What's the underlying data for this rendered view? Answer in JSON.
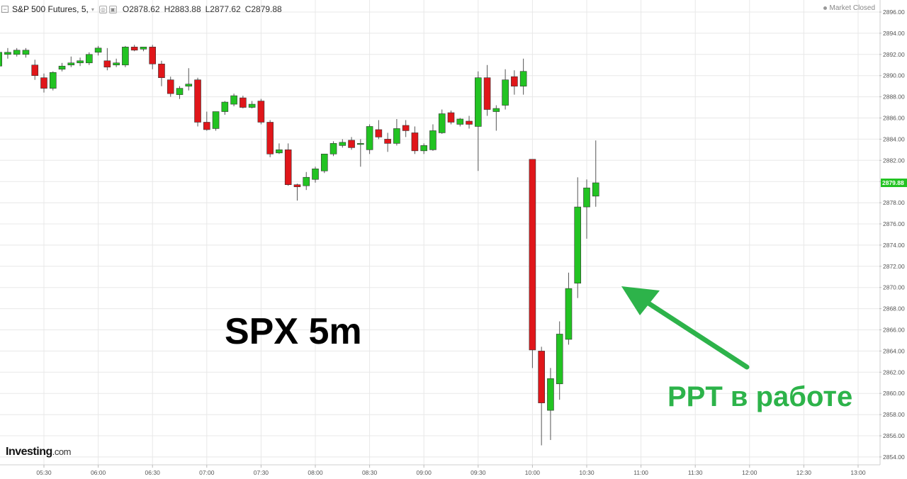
{
  "header": {
    "collapse_glyph": "−",
    "symbol": "S&P 500 Futures, 5,",
    "caret_glyph": "▾",
    "eye_glyph": "◎",
    "settings_glyph": "▣",
    "open": "O2878.62",
    "high": "H2883.88",
    "low": "L2877.62",
    "close": "C2879.88"
  },
  "status": {
    "text": "Market Closed"
  },
  "logo": {
    "brand": "Investing",
    "domain": ".com"
  },
  "annotations": {
    "left": "SPX 5m",
    "right": "PPT  в работе",
    "color": "#2db34a"
  },
  "colors": {
    "up": "#22c322",
    "down": "#e0161a",
    "grid": "#e8e8e8",
    "axis_text": "#555555",
    "last_price_bg": "#22c322"
  },
  "chart_data": {
    "type": "candlestick",
    "title": "S&P 500 Futures, 5",
    "ylim": [
      2853,
      2897
    ],
    "y_ticks": [
      "2896.00",
      "2894.00",
      "2892.00",
      "2890.00",
      "2888.00",
      "2886.00",
      "2884.00",
      "2882.00",
      "2880.00",
      "2878.00",
      "2876.00",
      "2874.00",
      "2872.00",
      "2870.00",
      "2868.00",
      "2866.00",
      "2864.00",
      "2862.00",
      "2860.00",
      "2858.00",
      "2856.00",
      "2854.00"
    ],
    "x_ticks": [
      "05:30",
      "06:00",
      "06:30",
      "07:00",
      "07:30",
      "08:00",
      "08:30",
      "09:00",
      "09:30",
      "10:00",
      "10:30",
      "11:00",
      "11:30",
      "12:00",
      "12:30",
      "13:00"
    ],
    "last_price": "2879.88",
    "candles": [
      {
        "t": "05:05",
        "o": 2890.9,
        "h": 2892.4,
        "l": 2890.6,
        "c": 2892.2
      },
      {
        "t": "05:10",
        "o": 2892.0,
        "h": 2892.6,
        "l": 2891.6,
        "c": 2892.2
      },
      {
        "t": "05:15",
        "o": 2892.0,
        "h": 2892.6,
        "l": 2891.8,
        "c": 2892.4
      },
      {
        "t": "05:20",
        "o": 2892.0,
        "h": 2892.6,
        "l": 2891.7,
        "c": 2892.4
      },
      {
        "t": "05:25",
        "o": 2891.0,
        "h": 2891.5,
        "l": 2889.6,
        "c": 2890.0
      },
      {
        "t": "05:30",
        "o": 2889.8,
        "h": 2890.2,
        "l": 2888.4,
        "c": 2888.8
      },
      {
        "t": "05:35",
        "o": 2888.8,
        "h": 2890.4,
        "l": 2888.6,
        "c": 2890.3
      },
      {
        "t": "05:40",
        "o": 2890.6,
        "h": 2891.2,
        "l": 2890.4,
        "c": 2890.9
      },
      {
        "t": "05:45",
        "o": 2891.0,
        "h": 2891.8,
        "l": 2890.8,
        "c": 2891.2
      },
      {
        "t": "05:50",
        "o": 2891.2,
        "h": 2891.7,
        "l": 2890.9,
        "c": 2891.4
      },
      {
        "t": "05:55",
        "o": 2891.2,
        "h": 2892.2,
        "l": 2891.0,
        "c": 2892.0
      },
      {
        "t": "06:00",
        "o": 2892.2,
        "h": 2892.8,
        "l": 2891.9,
        "c": 2892.6
      },
      {
        "t": "06:05",
        "o": 2891.4,
        "h": 2892.6,
        "l": 2890.5,
        "c": 2890.8
      },
      {
        "t": "06:10",
        "o": 2891.0,
        "h": 2891.6,
        "l": 2890.8,
        "c": 2891.2
      },
      {
        "t": "06:15",
        "o": 2891.0,
        "h": 2892.8,
        "l": 2890.8,
        "c": 2892.7
      },
      {
        "t": "06:20",
        "o": 2892.7,
        "h": 2892.9,
        "l": 2892.3,
        "c": 2892.4
      },
      {
        "t": "06:25",
        "o": 2892.5,
        "h": 2892.7,
        "l": 2892.3,
        "c": 2892.7
      },
      {
        "t": "06:30",
        "o": 2892.7,
        "h": 2892.9,
        "l": 2890.6,
        "c": 2891.1
      },
      {
        "t": "06:35",
        "o": 2891.1,
        "h": 2891.4,
        "l": 2889.0,
        "c": 2889.8
      },
      {
        "t": "06:40",
        "o": 2889.6,
        "h": 2889.9,
        "l": 2888.0,
        "c": 2888.3
      },
      {
        "t": "06:45",
        "o": 2888.2,
        "h": 2889.0,
        "l": 2887.8,
        "c": 2888.8
      },
      {
        "t": "06:50",
        "o": 2889.0,
        "h": 2890.7,
        "l": 2888.6,
        "c": 2889.2
      },
      {
        "t": "06:55",
        "o": 2889.6,
        "h": 2889.8,
        "l": 2885.2,
        "c": 2885.6
      },
      {
        "t": "07:00",
        "o": 2885.6,
        "h": 2886.6,
        "l": 2884.8,
        "c": 2884.9
      },
      {
        "t": "07:05",
        "o": 2885.0,
        "h": 2886.6,
        "l": 2884.8,
        "c": 2886.6
      },
      {
        "t": "07:10",
        "o": 2886.6,
        "h": 2887.6,
        "l": 2886.3,
        "c": 2887.5
      },
      {
        "t": "07:15",
        "o": 2887.3,
        "h": 2888.3,
        "l": 2887.1,
        "c": 2888.1
      },
      {
        "t": "07:20",
        "o": 2887.9,
        "h": 2888.1,
        "l": 2886.9,
        "c": 2887.0
      },
      {
        "t": "07:25",
        "o": 2887.0,
        "h": 2887.6,
        "l": 2886.9,
        "c": 2887.3
      },
      {
        "t": "07:30",
        "o": 2887.6,
        "h": 2887.8,
        "l": 2885.4,
        "c": 2885.6
      },
      {
        "t": "07:35",
        "o": 2885.6,
        "h": 2885.8,
        "l": 2882.3,
        "c": 2882.6
      },
      {
        "t": "07:40",
        "o": 2882.7,
        "h": 2883.6,
        "l": 2882.6,
        "c": 2883.0
      },
      {
        "t": "07:45",
        "o": 2883.0,
        "h": 2883.6,
        "l": 2879.6,
        "c": 2879.7
      },
      {
        "t": "07:50",
        "o": 2879.7,
        "h": 2879.8,
        "l": 2878.2,
        "c": 2879.5
      },
      {
        "t": "07:55",
        "o": 2879.6,
        "h": 2880.9,
        "l": 2879.2,
        "c": 2880.4
      },
      {
        "t": "08:00",
        "o": 2880.2,
        "h": 2881.4,
        "l": 2879.9,
        "c": 2881.2
      },
      {
        "t": "08:05",
        "o": 2881.0,
        "h": 2882.6,
        "l": 2880.8,
        "c": 2882.6
      },
      {
        "t": "08:10",
        "o": 2882.6,
        "h": 2883.8,
        "l": 2882.4,
        "c": 2883.6
      },
      {
        "t": "08:15",
        "o": 2883.4,
        "h": 2884.0,
        "l": 2883.2,
        "c": 2883.7
      },
      {
        "t": "08:20",
        "o": 2883.9,
        "h": 2884.2,
        "l": 2883.0,
        "c": 2883.2
      },
      {
        "t": "08:25",
        "o": 2883.5,
        "h": 2884.0,
        "l": 2881.4,
        "c": 2883.6
      },
      {
        "t": "08:30",
        "o": 2883.0,
        "h": 2885.4,
        "l": 2882.6,
        "c": 2885.2
      },
      {
        "t": "08:35",
        "o": 2884.9,
        "h": 2885.8,
        "l": 2884.0,
        "c": 2884.2
      },
      {
        "t": "08:40",
        "o": 2884.0,
        "h": 2884.6,
        "l": 2882.8,
        "c": 2883.6
      },
      {
        "t": "08:45",
        "o": 2883.6,
        "h": 2885.9,
        "l": 2883.4,
        "c": 2885.0
      },
      {
        "t": "08:50",
        "o": 2885.3,
        "h": 2885.8,
        "l": 2884.2,
        "c": 2884.8
      },
      {
        "t": "08:55",
        "o": 2884.6,
        "h": 2885.2,
        "l": 2882.6,
        "c": 2882.9
      },
      {
        "t": "09:00",
        "o": 2882.9,
        "h": 2883.6,
        "l": 2882.6,
        "c": 2883.4
      },
      {
        "t": "09:05",
        "o": 2883.0,
        "h": 2885.4,
        "l": 2882.9,
        "c": 2884.8
      },
      {
        "t": "09:10",
        "o": 2884.6,
        "h": 2886.8,
        "l": 2884.5,
        "c": 2886.4
      },
      {
        "t": "09:15",
        "o": 2886.5,
        "h": 2886.7,
        "l": 2885.4,
        "c": 2885.6
      },
      {
        "t": "09:20",
        "o": 2885.4,
        "h": 2886.0,
        "l": 2885.2,
        "c": 2885.9
      },
      {
        "t": "09:25",
        "o": 2885.7,
        "h": 2886.2,
        "l": 2885.0,
        "c": 2885.4
      },
      {
        "t": "09:30",
        "o": 2885.2,
        "h": 2890.4,
        "l": 2881.0,
        "c": 2889.8
      },
      {
        "t": "09:35",
        "o": 2889.8,
        "h": 2891.0,
        "l": 2886.2,
        "c": 2886.8
      },
      {
        "t": "09:40",
        "o": 2886.6,
        "h": 2887.2,
        "l": 2884.8,
        "c": 2886.9
      },
      {
        "t": "09:45",
        "o": 2887.2,
        "h": 2890.6,
        "l": 2886.8,
        "c": 2889.6
      },
      {
        "t": "09:50",
        "o": 2889.9,
        "h": 2890.5,
        "l": 2888.2,
        "c": 2889.0
      },
      {
        "t": "09:55",
        "o": 2889.0,
        "h": 2891.6,
        "l": 2888.2,
        "c": 2890.4
      },
      {
        "t": "10:00",
        "o": 2882.1,
        "h": 2882.1,
        "l": 2862.4,
        "c": 2864.1
      },
      {
        "t": "10:05",
        "o": 2864.0,
        "h": 2864.4,
        "l": 2855.1,
        "c": 2859.1
      },
      {
        "t": "10:10",
        "o": 2858.4,
        "h": 2862.4,
        "l": 2855.6,
        "c": 2861.4
      },
      {
        "t": "10:15",
        "o": 2860.9,
        "h": 2866.8,
        "l": 2859.4,
        "c": 2865.6
      },
      {
        "t": "10:20",
        "o": 2865.1,
        "h": 2871.4,
        "l": 2864.6,
        "c": 2869.9
      },
      {
        "t": "10:25",
        "o": 2870.4,
        "h": 2880.4,
        "l": 2869.0,
        "c": 2877.6
      },
      {
        "t": "10:30",
        "o": 2877.6,
        "h": 2880.2,
        "l": 2874.6,
        "c": 2879.4
      },
      {
        "t": "10:35",
        "o": 2878.62,
        "h": 2883.88,
        "l": 2877.62,
        "c": 2879.88
      }
    ]
  }
}
